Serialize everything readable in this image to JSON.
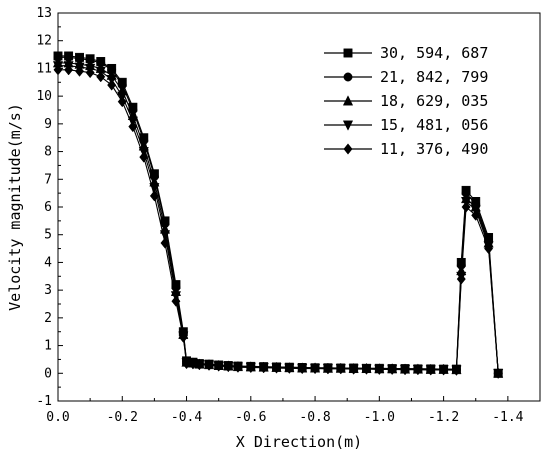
{
  "chart_data": {
    "type": "line",
    "title": "",
    "xlabel": "X Direction(m)",
    "ylabel": "Velocity magnitude(m/s)",
    "xlim": [
      0.0,
      -1.5
    ],
    "ylim": [
      -1,
      13
    ],
    "x_reversed": true,
    "x_ticks": [
      0.0,
      -0.2,
      -0.4,
      -0.6,
      -0.8,
      -1.0,
      -1.2,
      -1.4
    ],
    "x_tick_labels": [
      "0.0",
      "-0.2",
      "-0.4",
      "-0.6",
      "-0.8",
      "-1.0",
      "-1.2",
      "-1.4"
    ],
    "y_ticks": [
      -1,
      0,
      1,
      2,
      3,
      4,
      5,
      6,
      7,
      8,
      9,
      10,
      11,
      12,
      13
    ],
    "y_tick_labels": [
      "-1",
      "0",
      "1",
      "2",
      "3",
      "4",
      "5",
      "6",
      "7",
      "8",
      "9",
      "10",
      "11",
      "12",
      "13"
    ],
    "grid": false,
    "legend_position": "top-right",
    "series": [
      {
        "name": "30, 594, 687",
        "marker": "square",
        "x": [
          0.0,
          -0.033,
          -0.067,
          -0.1,
          -0.133,
          -0.167,
          -0.2,
          -0.233,
          -0.267,
          -0.3,
          -0.333,
          -0.367,
          -0.39,
          -0.4,
          -0.42,
          -0.44,
          -0.47,
          -0.5,
          -0.53,
          -0.56,
          -0.6,
          -0.64,
          -0.68,
          -0.72,
          -0.76,
          -0.8,
          -0.84,
          -0.88,
          -0.92,
          -0.96,
          -1.0,
          -1.04,
          -1.08,
          -1.12,
          -1.16,
          -1.2,
          -1.24,
          -1.255,
          -1.27,
          -1.3,
          -1.34,
          -1.37
        ],
        "y": [
          11.45,
          11.45,
          11.4,
          11.35,
          11.25,
          11.0,
          10.5,
          9.6,
          8.5,
          7.2,
          5.5,
          3.2,
          1.5,
          0.45,
          0.4,
          0.35,
          0.33,
          0.3,
          0.28,
          0.26,
          0.25,
          0.24,
          0.23,
          0.22,
          0.21,
          0.2,
          0.2,
          0.19,
          0.19,
          0.18,
          0.18,
          0.17,
          0.17,
          0.16,
          0.16,
          0.15,
          0.15,
          4.0,
          6.6,
          6.2,
          4.9,
          0.0
        ]
      },
      {
        "name": "21, 842, 799",
        "marker": "circle",
        "x": [
          0.0,
          -0.033,
          -0.067,
          -0.1,
          -0.133,
          -0.167,
          -0.2,
          -0.233,
          -0.267,
          -0.3,
          -0.333,
          -0.367,
          -0.39,
          -0.4,
          -0.42,
          -0.44,
          -0.47,
          -0.5,
          -0.53,
          -0.56,
          -0.6,
          -0.64,
          -0.68,
          -0.72,
          -0.76,
          -0.8,
          -0.84,
          -0.88,
          -0.92,
          -0.96,
          -1.0,
          -1.04,
          -1.08,
          -1.12,
          -1.16,
          -1.2,
          -1.24,
          -1.255,
          -1.27,
          -1.3,
          -1.34,
          -1.37
        ],
        "y": [
          11.4,
          11.4,
          11.35,
          11.3,
          11.2,
          10.95,
          10.4,
          9.5,
          8.4,
          7.1,
          5.4,
          3.1,
          1.45,
          0.42,
          0.38,
          0.34,
          0.32,
          0.29,
          0.27,
          0.25,
          0.24,
          0.23,
          0.22,
          0.21,
          0.2,
          0.2,
          0.19,
          0.19,
          0.18,
          0.18,
          0.17,
          0.17,
          0.16,
          0.16,
          0.15,
          0.15,
          0.14,
          3.9,
          6.5,
          6.1,
          4.8,
          0.0
        ]
      },
      {
        "name": "18, 629, 035",
        "marker": "triangle-up",
        "x": [
          0.0,
          -0.033,
          -0.067,
          -0.1,
          -0.133,
          -0.167,
          -0.2,
          -0.233,
          -0.267,
          -0.3,
          -0.333,
          -0.367,
          -0.39,
          -0.4,
          -0.42,
          -0.44,
          -0.47,
          -0.5,
          -0.53,
          -0.56,
          -0.6,
          -0.64,
          -0.68,
          -0.72,
          -0.76,
          -0.8,
          -0.84,
          -0.88,
          -0.92,
          -0.96,
          -1.0,
          -1.04,
          -1.08,
          -1.12,
          -1.16,
          -1.2,
          -1.24,
          -1.255,
          -1.27,
          -1.3,
          -1.34,
          -1.37
        ],
        "y": [
          11.2,
          11.2,
          11.15,
          11.1,
          11.0,
          10.75,
          10.2,
          9.3,
          8.2,
          6.9,
          5.2,
          2.95,
          1.4,
          0.4,
          0.37,
          0.33,
          0.31,
          0.28,
          0.26,
          0.24,
          0.23,
          0.22,
          0.21,
          0.2,
          0.19,
          0.19,
          0.18,
          0.18,
          0.17,
          0.17,
          0.16,
          0.16,
          0.15,
          0.15,
          0.14,
          0.14,
          0.13,
          3.7,
          6.3,
          6.0,
          4.7,
          0.0
        ]
      },
      {
        "name": "15, 481, 056",
        "marker": "triangle-down",
        "x": [
          0.0,
          -0.033,
          -0.067,
          -0.1,
          -0.133,
          -0.167,
          -0.2,
          -0.233,
          -0.267,
          -0.3,
          -0.333,
          -0.367,
          -0.39,
          -0.4,
          -0.42,
          -0.44,
          -0.47,
          -0.5,
          -0.53,
          -0.56,
          -0.6,
          -0.64,
          -0.68,
          -0.72,
          -0.76,
          -0.8,
          -0.84,
          -0.88,
          -0.92,
          -0.96,
          -1.0,
          -1.04,
          -1.08,
          -1.12,
          -1.16,
          -1.2,
          -1.24,
          -1.255,
          -1.27,
          -1.3,
          -1.34,
          -1.37
        ],
        "y": [
          11.1,
          11.1,
          11.05,
          11.0,
          10.9,
          10.6,
          10.0,
          9.1,
          8.0,
          6.7,
          5.0,
          2.8,
          1.35,
          0.38,
          0.36,
          0.32,
          0.3,
          0.27,
          0.25,
          0.23,
          0.22,
          0.21,
          0.2,
          0.19,
          0.18,
          0.18,
          0.17,
          0.17,
          0.16,
          0.16,
          0.15,
          0.15,
          0.14,
          0.14,
          0.13,
          0.13,
          0.12,
          3.5,
          6.2,
          5.9,
          4.6,
          0.0
        ]
      },
      {
        "name": "11, 376, 490",
        "marker": "diamond",
        "x": [
          0.0,
          -0.033,
          -0.067,
          -0.1,
          -0.133,
          -0.167,
          -0.2,
          -0.233,
          -0.267,
          -0.3,
          -0.333,
          -0.367,
          -0.39,
          -0.4,
          -0.42,
          -0.44,
          -0.47,
          -0.5,
          -0.53,
          -0.56,
          -0.6,
          -0.64,
          -0.68,
          -0.72,
          -0.76,
          -0.8,
          -0.84,
          -0.88,
          -0.92,
          -0.96,
          -1.0,
          -1.04,
          -1.08,
          -1.12,
          -1.16,
          -1.2,
          -1.24,
          -1.255,
          -1.27,
          -1.3,
          -1.34,
          -1.37
        ],
        "y": [
          10.95,
          10.95,
          10.9,
          10.85,
          10.7,
          10.4,
          9.8,
          8.9,
          7.8,
          6.4,
          4.7,
          2.6,
          1.3,
          0.35,
          0.34,
          0.31,
          0.29,
          0.26,
          0.24,
          0.22,
          0.21,
          0.2,
          0.19,
          0.18,
          0.17,
          0.17,
          0.16,
          0.16,
          0.15,
          0.15,
          0.14,
          0.14,
          0.13,
          0.13,
          0.12,
          0.12,
          0.11,
          3.4,
          6.0,
          5.7,
          4.5,
          0.0
        ]
      }
    ]
  }
}
